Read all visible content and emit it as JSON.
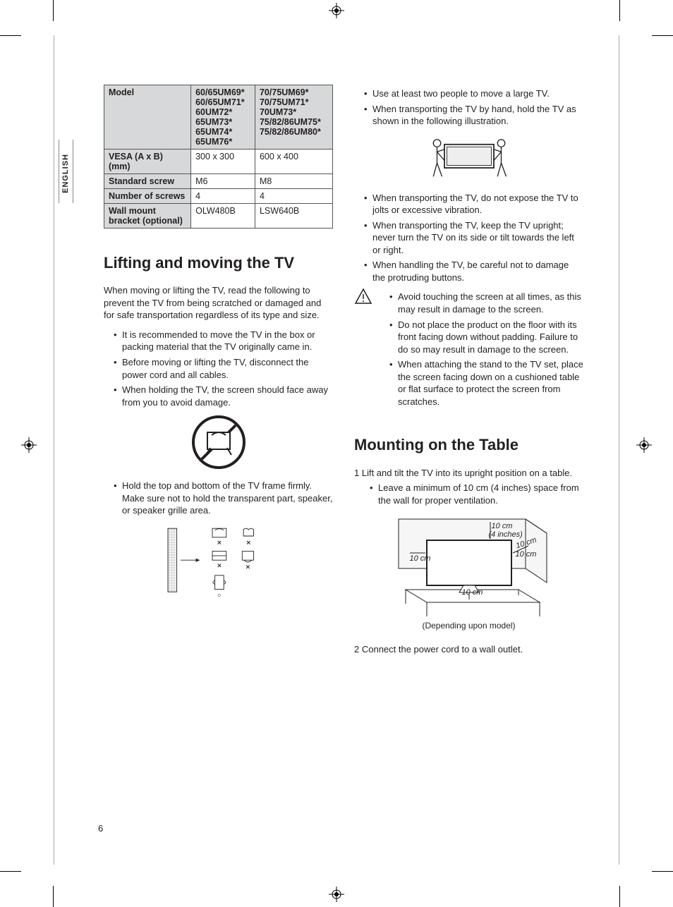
{
  "side_label": "ENGLISH",
  "page_number": "6",
  "table": {
    "rows": [
      {
        "h": "Model",
        "c1": "60/65UM69*\n60/65UM71*\n60UM72*\n65UM73*\n65UM74*\n65UM76*",
        "c2": "70/75UM69*\n70/75UM71*\n70UM73*\n75/82/86UM75*\n75/82/86UM80*"
      },
      {
        "h": "VESA (A x B) (mm)",
        "c1": "300 x 300",
        "c2": "600 x 400"
      },
      {
        "h": "Standard screw",
        "c1": "M6",
        "c2": "M8"
      },
      {
        "h": "Number of screws",
        "c1": "4",
        "c2": "4"
      },
      {
        "h": "Wall mount bracket (optional)",
        "c1": "OLW480B",
        "c2": "LSW640B"
      }
    ]
  },
  "left": {
    "heading": "Lifting and moving the TV",
    "intro": "When moving or lifting the TV, read the following to prevent the TV from being scratched or damaged and for safe transportation regardless of its type and size.",
    "bul1": [
      "It is recommended to move the TV in the box or packing material that the TV originally came in.",
      "Before moving or lifting the TV, disconnect the power cord and all cables.",
      "When holding the TV, the screen should face away from you to avoid damage."
    ],
    "bul2": [
      "Hold the top and bottom of the TV frame firmly. Make sure not to hold the transparent part, speaker, or speaker grille area."
    ]
  },
  "right": {
    "bul_top": [
      "Use at least two people to move a large TV.",
      "When transporting the TV by hand, hold the TV as shown in the following illustration."
    ],
    "bul_mid": [
      "When transporting the TV, do not expose the TV to jolts or excessive vibration.",
      "When transporting the TV, keep the TV upright; never turn the TV on its side or tilt towards the left or right.",
      "When handling the TV, be careful not to damage the protruding buttons."
    ],
    "warn": [
      "Avoid touching the screen at all times, as this may result in damage to the screen.",
      "Do not place the product on the floor with its front facing down without padding. Failure to do so may result in damage to the screen.",
      "When attaching the stand to the TV set, place the screen facing down on a cushioned table or flat surface to protect the screen from scratches."
    ],
    "heading": "Mounting on the Table",
    "step1": "1  Lift and tilt the TV into its upright position on a table.",
    "step1_sub": "Leave a minimum of 10 cm (4 inches) space from the wall for proper ventilation.",
    "dims": {
      "a": "10 cm",
      "b": "(4 inches)",
      "c": "10 cm",
      "d": "10 cm",
      "e": "10 cm",
      "f": "10 cm"
    },
    "caption": "(Depending upon model)",
    "step2": "2  Connect the power cord to a wall outlet."
  }
}
